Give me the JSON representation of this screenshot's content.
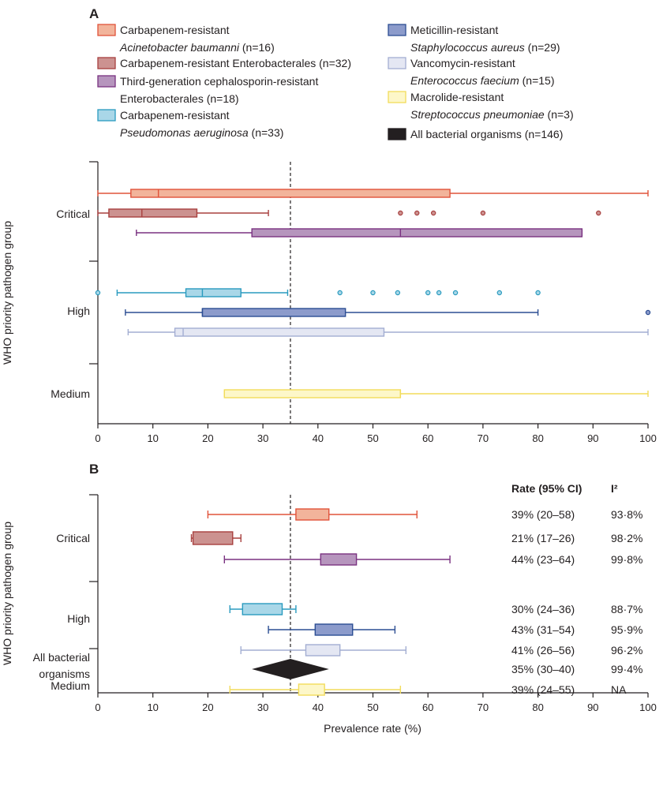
{
  "colors": {
    "ab": {
      "fill": "#f2b49b",
      "stroke": "#e0533a"
    },
    "cre": {
      "fill": "#cc9290",
      "stroke": "#a8403f"
    },
    "g3": {
      "fill": "#b695bd",
      "stroke": "#7a3281"
    },
    "pa": {
      "fill": "#a9d7e8",
      "stroke": "#2a9bbf"
    },
    "mrsa": {
      "fill": "#8c9bcb",
      "stroke": "#2c4e93"
    },
    "vre": {
      "fill": "#e4e7f3",
      "stroke": "#a3aed2"
    },
    "sp": {
      "fill": "#fdf7c9",
      "stroke": "#f2dc5a"
    },
    "all": {
      "fill": "#231f20",
      "stroke": "#231f20"
    }
  },
  "legend": [
    {
      "key": "ab",
      "line1": "Carbapenem-resistant",
      "line2_italic": "Acinetobacter baumanni",
      "line2_rest": " (n=16)"
    },
    {
      "key": "cre",
      "line1": "Carbapenem-resistant Enterobacterales (n=32)",
      "line2_italic": "",
      "line2_rest": ""
    },
    {
      "key": "g3",
      "line1": "Third-generation cephalosporin-resistant",
      "line2_italic": "",
      "line2_rest": "Enterobacterales (n=18)"
    },
    {
      "key": "pa",
      "line1": "Carbapenem-resistant",
      "line2_italic": "Pseudomonas aeruginosa",
      "line2_rest": " (n=33)"
    },
    {
      "key": "mrsa",
      "line1": "Meticillin-resistant",
      "line2_italic": "Staphylococcus aureus",
      "line2_rest": " (n=29)"
    },
    {
      "key": "vre",
      "line1": "Vancomycin-resistant",
      "line2_italic": "Enterococcus faecium",
      "line2_rest": " (n=15)"
    },
    {
      "key": "sp",
      "line1": "Macrolide-resistant",
      "line2_italic": "Streptococcus pneumoniae",
      "line2_rest": " (n=3)"
    },
    {
      "key": "all",
      "line1": "All bacterial organisms (n=146)",
      "line2_italic": "",
      "line2_rest": ""
    }
  ],
  "chart_data": [
    {
      "panel": "A",
      "type": "boxplot",
      "ylabel": "WHO priority pathogen group",
      "xlim": [
        0,
        100
      ],
      "reference_line": 35,
      "groups": [
        "Critical",
        "High",
        "Medium"
      ],
      "series": [
        {
          "key": "ab",
          "group": "Critical",
          "whisker_low": 0,
          "q1": 6,
          "median": 11,
          "q3": 64,
          "whisker_high": 100,
          "outliers": []
        },
        {
          "key": "cre",
          "group": "Critical",
          "whisker_low": 0,
          "q1": 2,
          "median": 8,
          "q3": 18,
          "whisker_high": 31,
          "outliers": [
            55,
            58,
            61,
            70,
            91
          ]
        },
        {
          "key": "g3",
          "group": "Critical",
          "whisker_low": 7,
          "q1": 28,
          "median": 55,
          "q3": 88,
          "whisker_high": 88,
          "outliers": []
        },
        {
          "key": "pa",
          "group": "High",
          "whisker_low": 3.5,
          "q1": 16,
          "median": 19,
          "q3": 26,
          "whisker_high": 34.5,
          "outliers": [
            0,
            44,
            50,
            54.5,
            60,
            62,
            65,
            73,
            80
          ]
        },
        {
          "key": "mrsa",
          "group": "High",
          "whisker_low": 5,
          "q1": 19,
          "median": 19,
          "q3": 45,
          "whisker_high": 80,
          "outliers": [
            100
          ]
        },
        {
          "key": "vre",
          "group": "High",
          "whisker_low": 5.5,
          "q1": 14,
          "median": 15.5,
          "q3": 52,
          "whisker_high": 100,
          "outliers": []
        },
        {
          "key": "sp",
          "group": "Medium",
          "whisker_low": 23,
          "q1": 23,
          "median": 55,
          "q3": 55,
          "whisker_high": 100,
          "outliers": []
        }
      ]
    },
    {
      "panel": "B",
      "type": "forest",
      "ylabel": "WHO priority pathogen group",
      "xlabel": "Prevalence rate (%)",
      "xlim": [
        0,
        100
      ],
      "xticks": [
        "0",
        "10",
        "20",
        "30",
        "40",
        "50",
        "60",
        "70",
        "80",
        "90",
        "100"
      ],
      "reference_line": 35,
      "groups": [
        "Critical",
        "High",
        "Medium"
      ],
      "overall_label": [
        "All bacterial",
        "organisms"
      ],
      "col_headers": {
        "rate": "Rate (95% CI)",
        "i2": "I²"
      },
      "series": [
        {
          "key": "ab",
          "group": "Critical",
          "rate": 39,
          "ci": [
            20,
            58
          ],
          "box": [
            36,
            42
          ],
          "rate_text": "39% (20–58)",
          "i2_text": "93·8%"
        },
        {
          "key": "cre",
          "group": "Critical",
          "rate": 21,
          "ci": [
            17,
            26
          ],
          "box": [
            17.3,
            24.5
          ],
          "rate_text": "21% (17–26)",
          "i2_text": "98·2%"
        },
        {
          "key": "g3",
          "group": "Critical",
          "rate": 44,
          "ci": [
            23,
            64
          ],
          "box": [
            40.5,
            47
          ],
          "rate_text": "44% (23–64)",
          "i2_text": "99·8%"
        },
        {
          "key": "pa",
          "group": "High",
          "rate": 30,
          "ci": [
            24,
            36
          ],
          "box": [
            26.3,
            33.5
          ],
          "rate_text": "30% (24–36)",
          "i2_text": "88·7%"
        },
        {
          "key": "mrsa",
          "group": "High",
          "rate": 43,
          "ci": [
            31,
            54
          ],
          "box": [
            39.5,
            46.3
          ],
          "rate_text": "43% (31–54)",
          "i2_text": "95·9%"
        },
        {
          "key": "vre",
          "group": "High",
          "rate": 41,
          "ci": [
            26,
            56
          ],
          "box": [
            37.8,
            44
          ],
          "rate_text": "41% (26–56)",
          "i2_text": "96·2%"
        },
        {
          "key": "sp",
          "group": "Medium",
          "rate": 39,
          "ci": [
            24,
            55
          ],
          "box": [
            36.5,
            41.2
          ],
          "rate_text": "39% (24–55)",
          "i2_text": "NA"
        },
        {
          "key": "all",
          "group": "All bacterial organisms",
          "rate": 35,
          "ci": [
            30,
            40
          ],
          "rate_text": "35% (30–40)",
          "i2_text": "99·4%"
        }
      ]
    }
  ]
}
